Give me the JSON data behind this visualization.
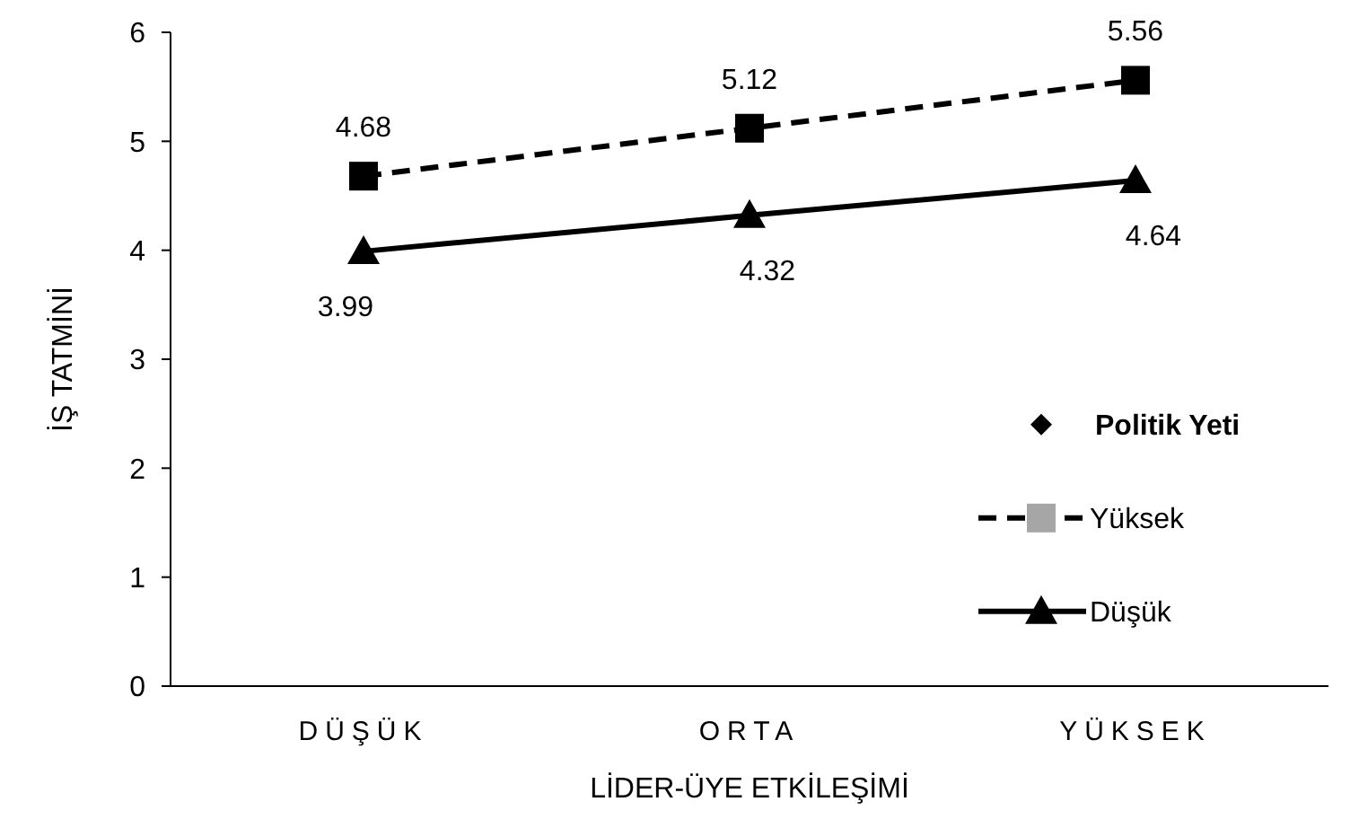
{
  "chart_data": {
    "type": "line",
    "xlabel": "LİDER-ÜYE  ETKİLEŞİMİ",
    "ylabel": "İŞ TATMİNİ",
    "legend_title": "Politik Yeti",
    "categories": [
      "DÜŞÜK",
      "ORTA",
      "YÜKSEK"
    ],
    "series": [
      {
        "name": "Yüksek",
        "color": "#000000",
        "values": [
          4.68,
          5.12,
          5.56
        ],
        "marker": "square",
        "line_style": "dashed"
      },
      {
        "name": "Düşük",
        "color": "#000000",
        "values": [
          3.99,
          4.32,
          4.64
        ],
        "marker": "triangle",
        "line_style": "solid"
      }
    ],
    "ylim": [
      0,
      6
    ],
    "yticks": [
      0,
      1,
      2,
      3,
      4,
      5,
      6
    ],
    "grid": false,
    "legend": "right",
    "data_labels": true
  }
}
